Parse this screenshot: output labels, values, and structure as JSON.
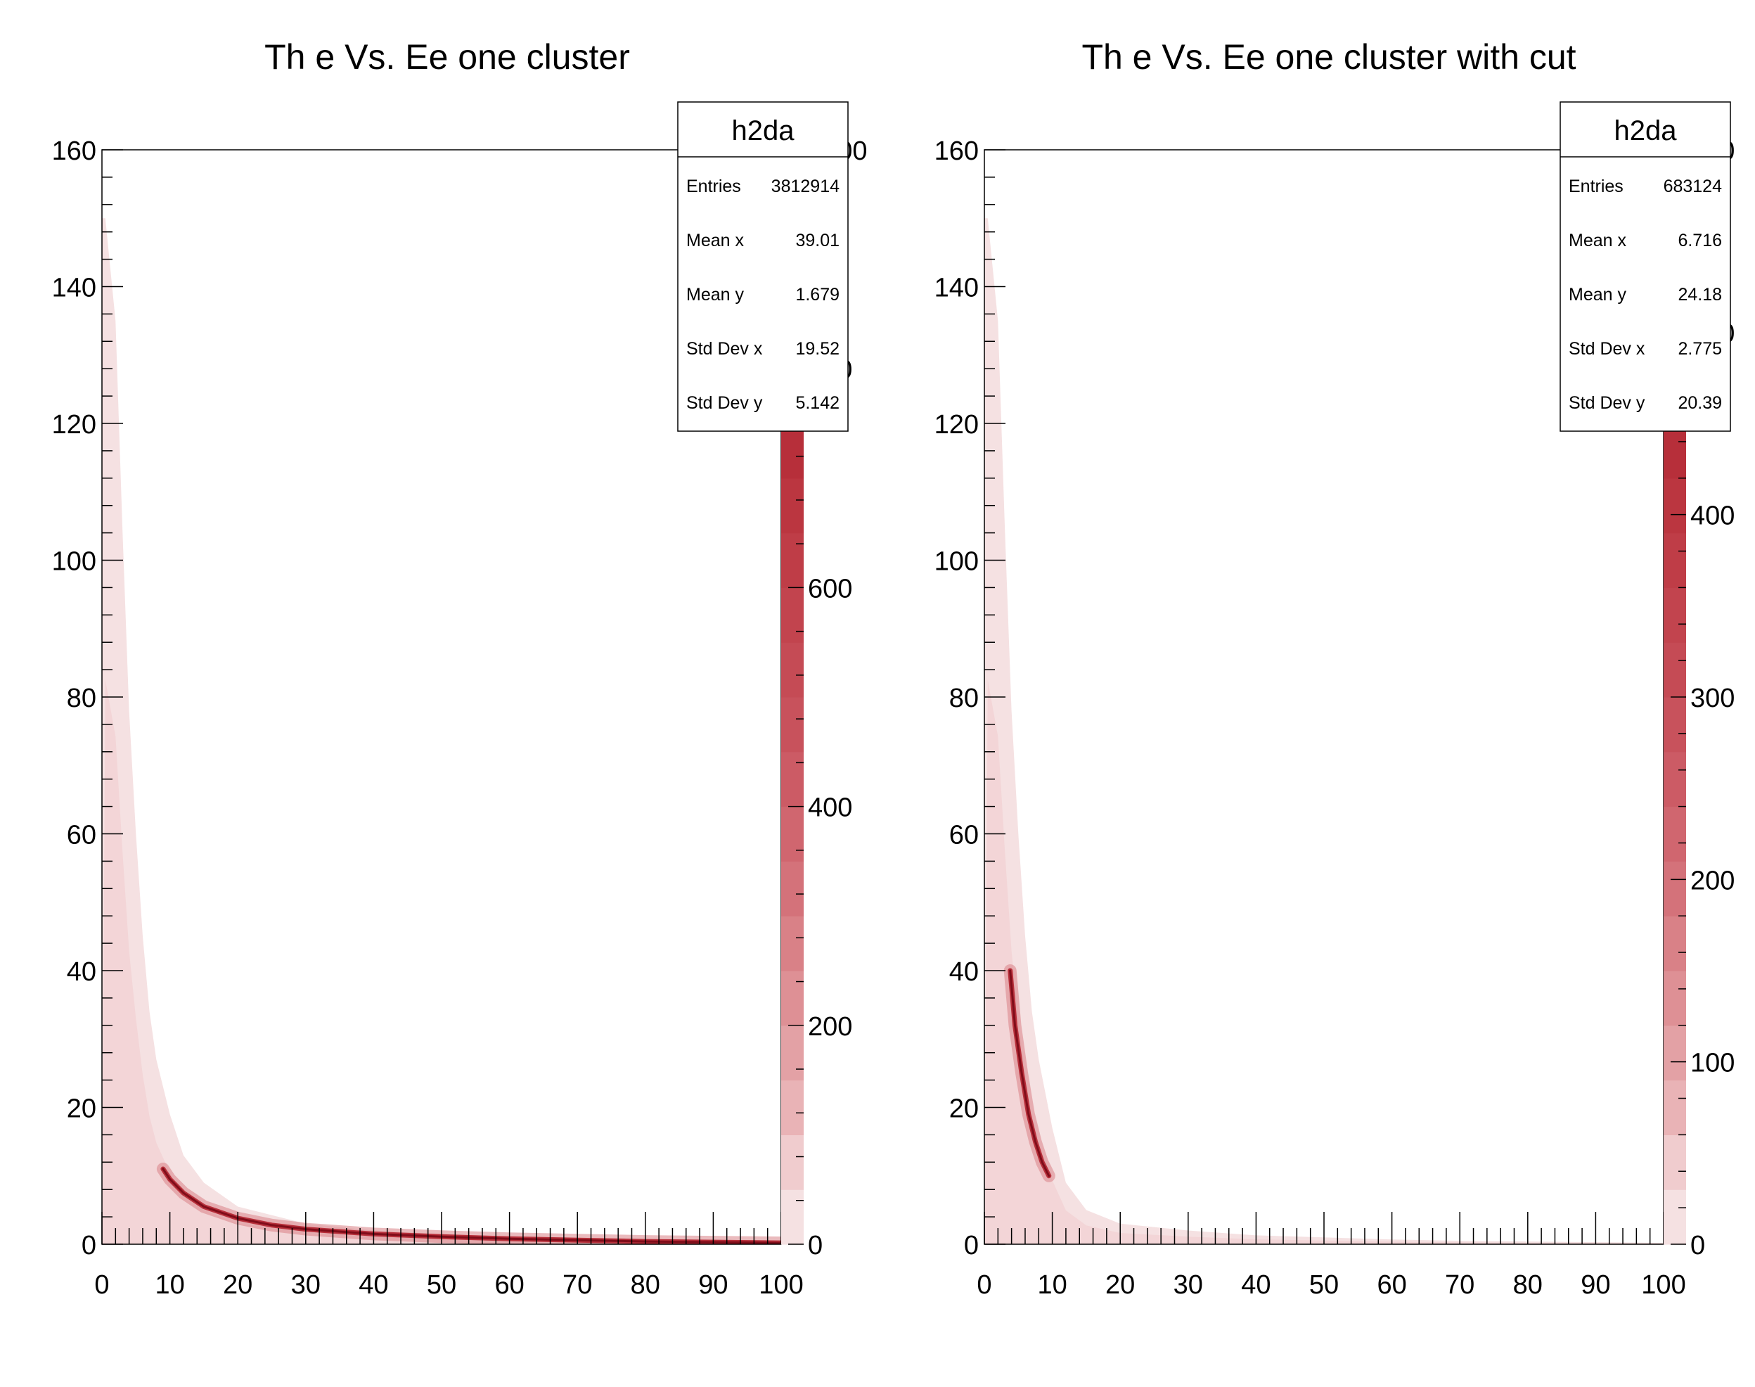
{
  "chart_data": [
    {
      "type": "heatmap",
      "title": "Th e Vs. Ee one cluster",
      "xlabel": "",
      "ylabel": "",
      "xlim": [
        0,
        100
      ],
      "ylim": [
        0,
        160
      ],
      "x_ticks": [
        "0",
        "10",
        "20",
        "30",
        "40",
        "50",
        "60",
        "70",
        "80",
        "90",
        "100"
      ],
      "y_ticks": [
        "0",
        "20",
        "40",
        "60",
        "80",
        "100",
        "120",
        "140",
        "160"
      ],
      "z_ticks": [
        "0",
        "200",
        "400",
        "600",
        "800",
        "1000"
      ],
      "z_range": [
        0,
        1000
      ],
      "palette": [
        "#f5e1e2",
        "#f0ccce",
        "#e9b3b6",
        "#e3a1a5",
        "#de9095",
        "#d98187",
        "#d4727a",
        "#d0666f",
        "#cc5b65",
        "#c8525c",
        "#c54b55",
        "#c2444e",
        "#bf3d47",
        "#bb3640",
        "#b72f3a",
        "#b12834",
        "#a9202d",
        "#9e1826",
        "#8f1220",
        "#800d1a"
      ],
      "envelope": [
        [
          0.5,
          150
        ],
        [
          2,
          135
        ],
        [
          3,
          105
        ],
        [
          4,
          78
        ],
        [
          5,
          60
        ],
        [
          6,
          45
        ],
        [
          7,
          34
        ],
        [
          8,
          27
        ],
        [
          10,
          19
        ],
        [
          12,
          13
        ],
        [
          15,
          9
        ],
        [
          20,
          5.5
        ],
        [
          30,
          3
        ],
        [
          40,
          2
        ],
        [
          50,
          1.5
        ],
        [
          60,
          1.1
        ],
        [
          70,
          0.8
        ],
        [
          80,
          0.6
        ],
        [
          90,
          0.4
        ],
        [
          100,
          0.3
        ]
      ],
      "ridge": [
        [
          9,
          11
        ],
        [
          10,
          9.5
        ],
        [
          12,
          7.5
        ],
        [
          15,
          5.5
        ],
        [
          20,
          3.8
        ],
        [
          25,
          2.8
        ],
        [
          30,
          2.2
        ],
        [
          40,
          1.5
        ],
        [
          50,
          1.1
        ],
        [
          60,
          0.8
        ],
        [
          70,
          0.6
        ],
        [
          80,
          0.4
        ],
        [
          90,
          0.3
        ],
        [
          100,
          0.2
        ]
      ],
      "stats": {
        "name": "h2da",
        "rows": [
          {
            "label": "Entries",
            "value": "3812914"
          },
          {
            "label": "Mean x",
            "value": "39.01"
          },
          {
            "label": "Mean y",
            "value": "1.679"
          },
          {
            "label": "Std Dev x",
            "value": "19.52"
          },
          {
            "label": "Std Dev y",
            "value": "5.142"
          }
        ]
      }
    },
    {
      "type": "heatmap",
      "title": "Th e Vs. Ee one cluster with cut",
      "xlabel": "",
      "ylabel": "",
      "xlim": [
        0,
        100
      ],
      "ylim": [
        0,
        160
      ],
      "x_ticks": [
        "0",
        "10",
        "20",
        "30",
        "40",
        "50",
        "60",
        "70",
        "80",
        "90",
        "100"
      ],
      "y_ticks": [
        "0",
        "20",
        "40",
        "60",
        "80",
        "100",
        "120",
        "140",
        "160"
      ],
      "z_ticks": [
        "0",
        "100",
        "200",
        "300",
        "400",
        "500",
        "600"
      ],
      "z_range": [
        0,
        600
      ],
      "palette": [
        "#f5e1e2",
        "#f0ccce",
        "#e9b3b6",
        "#e3a1a5",
        "#de9095",
        "#d98187",
        "#d4727a",
        "#d0666f",
        "#cc5b65",
        "#c8525c",
        "#c54b55",
        "#c2444e",
        "#bf3d47",
        "#bb3640",
        "#b72f3a",
        "#b12834",
        "#a9202d",
        "#9e1826",
        "#8f1220",
        "#800d1a"
      ],
      "envelope": [
        [
          0.5,
          150
        ],
        [
          2,
          135
        ],
        [
          3,
          105
        ],
        [
          4,
          78
        ],
        [
          5,
          60
        ],
        [
          6,
          45
        ],
        [
          7,
          34
        ],
        [
          8,
          27
        ],
        [
          10,
          17
        ],
        [
          12,
          9
        ],
        [
          15,
          5
        ],
        [
          20,
          3
        ],
        [
          30,
          2
        ],
        [
          40,
          1.3
        ],
        [
          50,
          1
        ],
        [
          60,
          0.7
        ],
        [
          70,
          0.5
        ],
        [
          80,
          0.4
        ],
        [
          90,
          0.3
        ],
        [
          100,
          0.2
        ]
      ],
      "ridge": [
        [
          3.8,
          40
        ],
        [
          4.5,
          32
        ],
        [
          5.5,
          25
        ],
        [
          6.5,
          19
        ],
        [
          7.5,
          15
        ],
        [
          8.5,
          12
        ],
        [
          9.5,
          10
        ]
      ],
      "stats": {
        "name": "h2da",
        "rows": [
          {
            "label": "Entries",
            "value": "683124"
          },
          {
            "label": "Mean x",
            "value": "6.716"
          },
          {
            "label": "Mean y",
            "value": "24.18"
          },
          {
            "label": "Std Dev x",
            "value": "2.775"
          },
          {
            "label": "Std Dev y",
            "value": "20.39"
          }
        ]
      }
    }
  ]
}
